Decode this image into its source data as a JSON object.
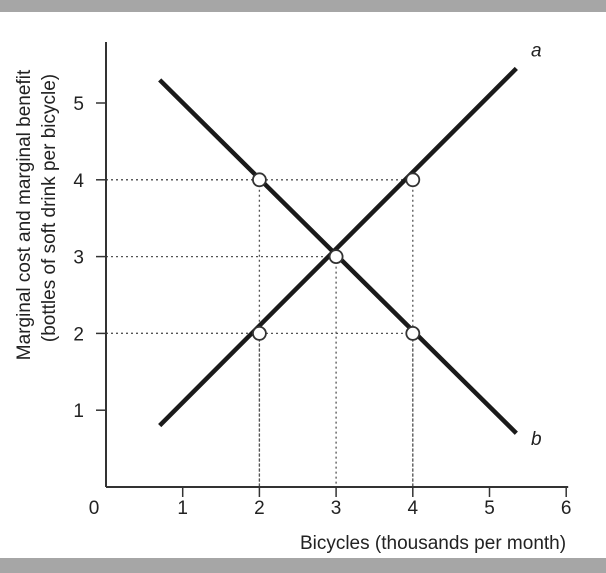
{
  "chart_data": {
    "type": "line",
    "title": "",
    "xlabel": "Bicycles (thousands per month)",
    "ylabel_lines": [
      "Marginal cost and marginal benefit",
      "(bottles of soft drink per bicycle)"
    ],
    "xlim": [
      0,
      6
    ],
    "ylim": [
      0,
      5.8
    ],
    "x_ticks": [
      "0",
      "1",
      "2",
      "3",
      "4",
      "5",
      "6"
    ],
    "y_ticks": [
      "1",
      "2",
      "3",
      "4",
      "5"
    ],
    "series": [
      {
        "name": "a",
        "x": [
          0.7,
          5.35
        ],
        "y": [
          0.8,
          5.45
        ]
      },
      {
        "name": "b",
        "x": [
          0.7,
          5.35
        ],
        "y": [
          5.3,
          0.7
        ]
      }
    ],
    "points": [
      {
        "x": 2,
        "y": 4
      },
      {
        "x": 4,
        "y": 4
      },
      {
        "x": 3,
        "y": 3
      },
      {
        "x": 2,
        "y": 2
      },
      {
        "x": 4,
        "y": 2
      }
    ],
    "guides": [
      {
        "x": 2,
        "y": 4
      },
      {
        "x": 4,
        "y": 4
      },
      {
        "x": 3,
        "y": 3
      },
      {
        "x": 2,
        "y": 2
      },
      {
        "x": 4,
        "y": 2
      }
    ],
    "grid": false,
    "legend": "none"
  }
}
